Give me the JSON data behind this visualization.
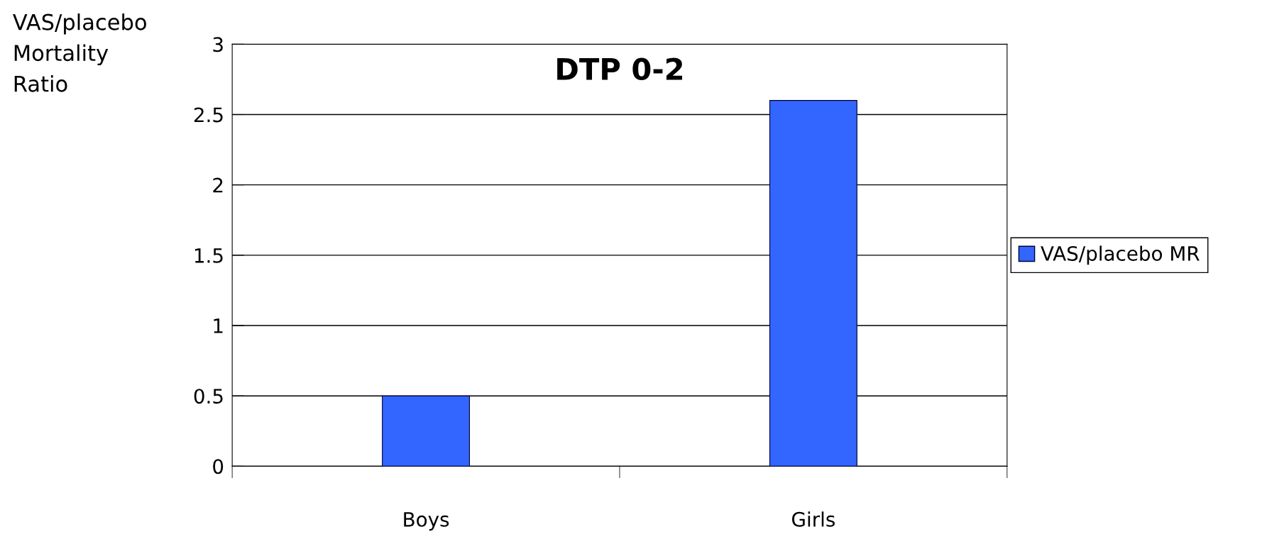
{
  "chart_data": {
    "type": "bar",
    "title": "DTP 0-2",
    "ylabel": "VAS/placebo Mortality Ratio",
    "categories": [
      "Boys",
      "Girls"
    ],
    "series": [
      {
        "name": "VAS/placebo MR",
        "color": "#3366ff",
        "values": [
          0.5,
          2.6
        ]
      }
    ],
    "ylim": [
      0,
      3
    ],
    "yticks": [
      0,
      0.5,
      1,
      1.5,
      2,
      2.5,
      3
    ],
    "grid": "y",
    "legend": "right"
  }
}
